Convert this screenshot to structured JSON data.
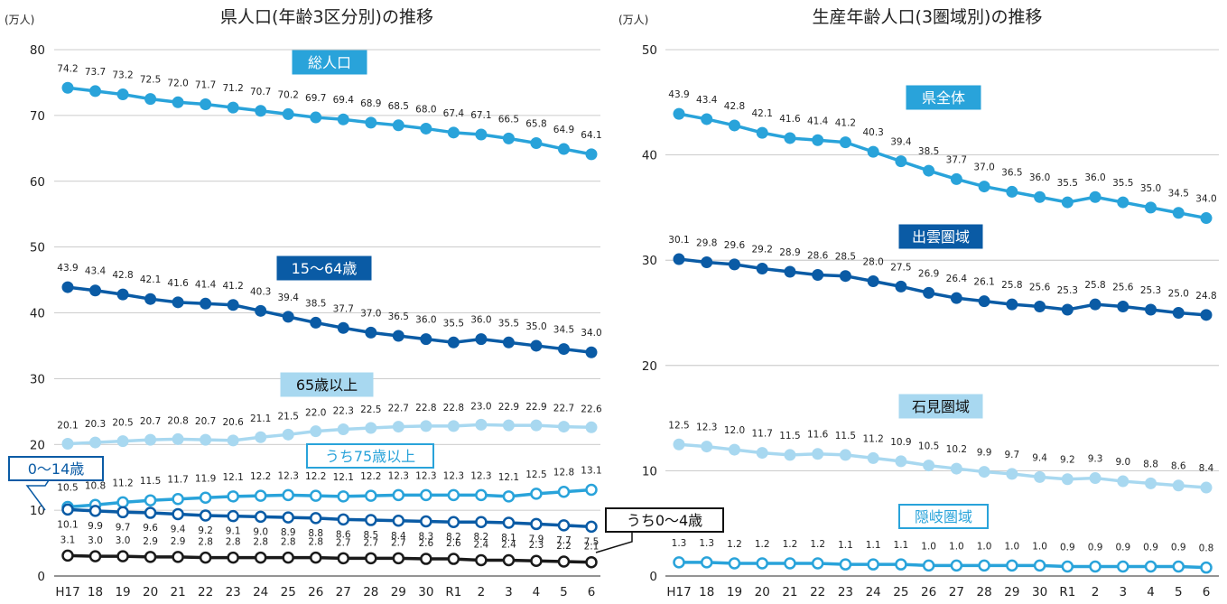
{
  "chart_data": [
    {
      "type": "line",
      "title": "県人口(年齢3区分別)の推移",
      "unit": "(万人)",
      "ylim": [
        0,
        80
      ],
      "yticks": [
        0,
        10,
        20,
        30,
        40,
        50,
        60,
        70,
        80
      ],
      "grid": true,
      "categories": [
        "H17",
        "18",
        "19",
        "20",
        "21",
        "22",
        "23",
        "24",
        "25",
        "26",
        "27",
        "28",
        "29",
        "30",
        "R1",
        "2",
        "3",
        "4",
        "5",
        "6"
      ],
      "series": [
        {
          "name": "総人口",
          "color": "#29a3da",
          "marker": "filled",
          "values": [
            74.2,
            73.7,
            73.2,
            72.5,
            72.0,
            71.7,
            71.2,
            70.7,
            70.2,
            69.7,
            69.4,
            68.9,
            68.5,
            68.0,
            67.4,
            67.1,
            66.5,
            65.8,
            64.9,
            64.1
          ]
        },
        {
          "name": "15～64歳",
          "color": "#0a5ba5",
          "marker": "filled",
          "values": [
            43.9,
            43.4,
            42.8,
            42.1,
            41.6,
            41.4,
            41.2,
            40.3,
            39.4,
            38.5,
            37.7,
            37.0,
            36.5,
            36.0,
            35.5,
            36.0,
            35.5,
            35.0,
            34.5,
            34.0
          ]
        },
        {
          "name": "65歳以上",
          "color": "#a8d8f0",
          "marker": "filled",
          "values": [
            20.1,
            20.3,
            20.5,
            20.7,
            20.8,
            20.7,
            20.6,
            21.1,
            21.5,
            22.0,
            22.3,
            22.5,
            22.7,
            22.8,
            22.8,
            23.0,
            22.9,
            22.9,
            22.7,
            22.6
          ]
        },
        {
          "name": "うち75歳以上",
          "color": "#29a3da",
          "marker": "open",
          "values": [
            10.5,
            10.8,
            11.2,
            11.5,
            11.7,
            11.9,
            12.1,
            12.2,
            12.3,
            12.2,
            12.1,
            12.2,
            12.3,
            12.3,
            12.3,
            12.3,
            12.1,
            12.5,
            12.8,
            13.1
          ]
        },
        {
          "name": "0～14歳",
          "color": "#0a5ba5",
          "marker": "open",
          "values": [
            10.1,
            9.9,
            9.7,
            9.6,
            9.4,
            9.2,
            9.1,
            9.0,
            8.9,
            8.8,
            8.6,
            8.5,
            8.4,
            8.3,
            8.2,
            8.2,
            8.1,
            7.9,
            7.7,
            7.5
          ]
        },
        {
          "name": "うち0～4歳",
          "color": "#1a1a1a",
          "marker": "open",
          "values": [
            3.1,
            3.0,
            3.0,
            2.9,
            2.9,
            2.8,
            2.8,
            2.8,
            2.8,
            2.8,
            2.7,
            2.7,
            2.7,
            2.6,
            2.6,
            2.4,
            2.4,
            2.3,
            2.2,
            2.1
          ]
        }
      ]
    },
    {
      "type": "line",
      "title": "生産年齢人口(3圏域別)の推移",
      "unit": "(万人)",
      "ylim": [
        0,
        50
      ],
      "yticks": [
        0,
        10,
        20,
        30,
        40,
        50
      ],
      "grid": true,
      "categories": [
        "H17",
        "18",
        "19",
        "20",
        "21",
        "22",
        "23",
        "24",
        "25",
        "26",
        "27",
        "28",
        "29",
        "30",
        "R1",
        "2",
        "3",
        "4",
        "5",
        "6"
      ],
      "series": [
        {
          "name": "県全体",
          "color": "#29a3da",
          "marker": "filled",
          "values": [
            43.9,
            43.4,
            42.8,
            42.1,
            41.6,
            41.4,
            41.2,
            40.3,
            39.4,
            38.5,
            37.7,
            37.0,
            36.5,
            36.0,
            35.5,
            36.0,
            35.5,
            35.0,
            34.5,
            34.0
          ]
        },
        {
          "name": "出雲圏域",
          "color": "#0a5ba5",
          "marker": "filled",
          "values": [
            30.1,
            29.8,
            29.6,
            29.2,
            28.9,
            28.6,
            28.5,
            28.0,
            27.5,
            26.9,
            26.4,
            26.1,
            25.8,
            25.6,
            25.3,
            25.8,
            25.6,
            25.3,
            25.0,
            24.8
          ]
        },
        {
          "name": "石見圏域",
          "color": "#a8d8f0",
          "marker": "filled",
          "values": [
            12.5,
            12.3,
            12.0,
            11.7,
            11.5,
            11.6,
            11.5,
            11.2,
            10.9,
            10.5,
            10.2,
            9.9,
            9.7,
            9.4,
            9.2,
            9.3,
            9.0,
            8.8,
            8.6,
            8.4
          ]
        },
        {
          "name": "隠岐圏域",
          "color": "#29a3da",
          "marker": "open",
          "values": [
            1.3,
            1.3,
            1.2,
            1.2,
            1.2,
            1.2,
            1.1,
            1.1,
            1.1,
            1.0,
            1.0,
            1.0,
            1.0,
            1.0,
            0.9,
            0.9,
            0.9,
            0.9,
            0.9,
            0.8
          ]
        }
      ]
    }
  ]
}
